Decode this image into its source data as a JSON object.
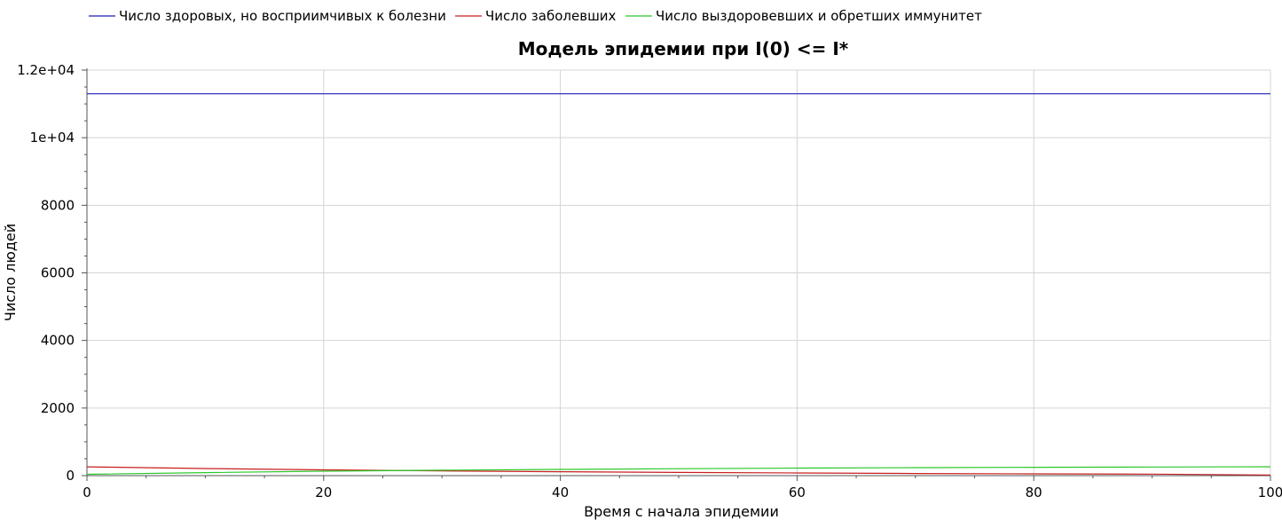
{
  "chart_data": {
    "type": "line",
    "title": "Модель эпидемии при I(0) <= I*",
    "xlabel": "Время с начала эпидемии",
    "ylabel": "Число людей",
    "xlim": [
      0,
      100
    ],
    "ylim": [
      0,
      12000
    ],
    "x_ticks": [
      0,
      20,
      40,
      60,
      80,
      100
    ],
    "x_tick_labels": [
      "0",
      "20",
      "40",
      "60",
      "80",
      "100"
    ],
    "y_ticks": [
      0,
      2000,
      4000,
      6000,
      8000,
      10000,
      12000
    ],
    "y_tick_labels": [
      "0",
      "2000",
      "4000",
      "6000",
      "8000",
      "1e+04",
      "1.2e+04"
    ],
    "grid": true,
    "legend_position": "top-left",
    "x": [
      0,
      10,
      20,
      30,
      40,
      50,
      60,
      70,
      80,
      90,
      100
    ],
    "series": [
      {
        "name": "Число здоровых, но восприимчивых к болезни",
        "color": "#1f1fb4",
        "values": [
          11300,
          11300,
          11300,
          11300,
          11300,
          11300,
          11300,
          11300,
          11300,
          11300,
          11300
        ]
      },
      {
        "name": "Число заболевших",
        "color": "#c81e1e",
        "values": [
          260,
          210,
          170,
          140,
          115,
          95,
          78,
          64,
          53,
          44,
          18
        ]
      },
      {
        "name": "Число выздоровевших и обретших иммунитет",
        "color": "#28c828",
        "values": [
          40,
          90,
          130,
          160,
          185,
          205,
          222,
          236,
          247,
          256,
          262
        ]
      }
    ]
  }
}
